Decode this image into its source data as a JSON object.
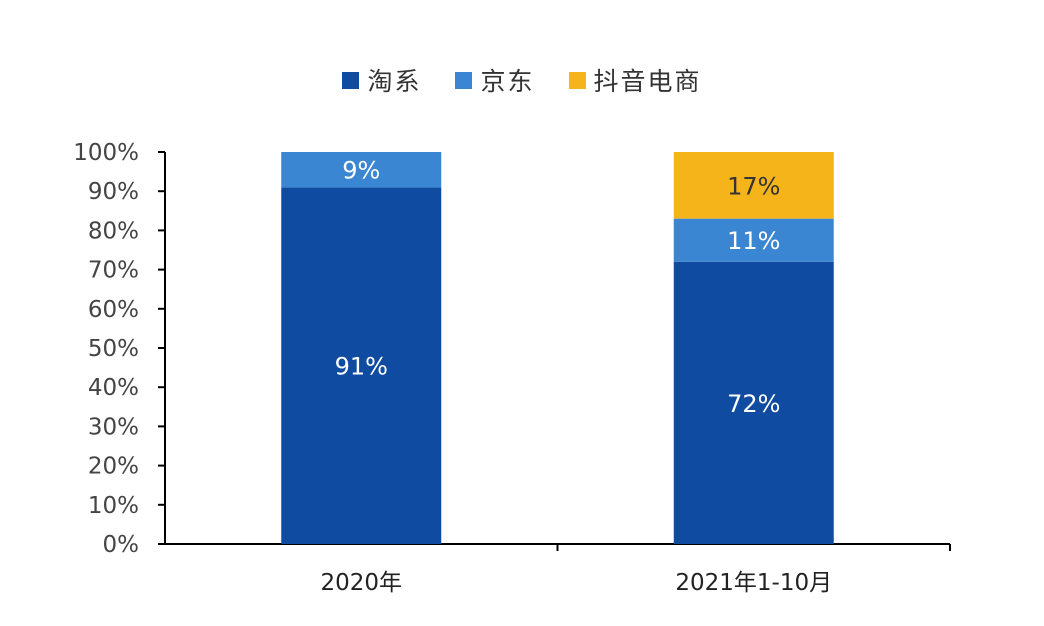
{
  "chart_data": {
    "type": "bar",
    "stacked": true,
    "categories": [
      "2020年",
      "2021年1-10月"
    ],
    "series": [
      {
        "name": "淘系",
        "color": "#0F4CA1",
        "values": [
          91,
          72
        ],
        "labels": [
          "91%",
          "72%"
        ]
      },
      {
        "name": "京东",
        "color": "#3B86D2",
        "values": [
          9,
          11
        ],
        "labels": [
          "9%",
          "11%"
        ]
      },
      {
        "name": "抖音电商",
        "color": "#F4B41A",
        "values": [
          0,
          17
        ],
        "labels": [
          "",
          "17%"
        ]
      }
    ],
    "y_ticks": [
      "0%",
      "10%",
      "20%",
      "30%",
      "40%",
      "50%",
      "60%",
      "70%",
      "80%",
      "90%",
      "100%"
    ],
    "ylim": [
      0,
      100
    ],
    "legend_position": "top",
    "grid": false
  }
}
